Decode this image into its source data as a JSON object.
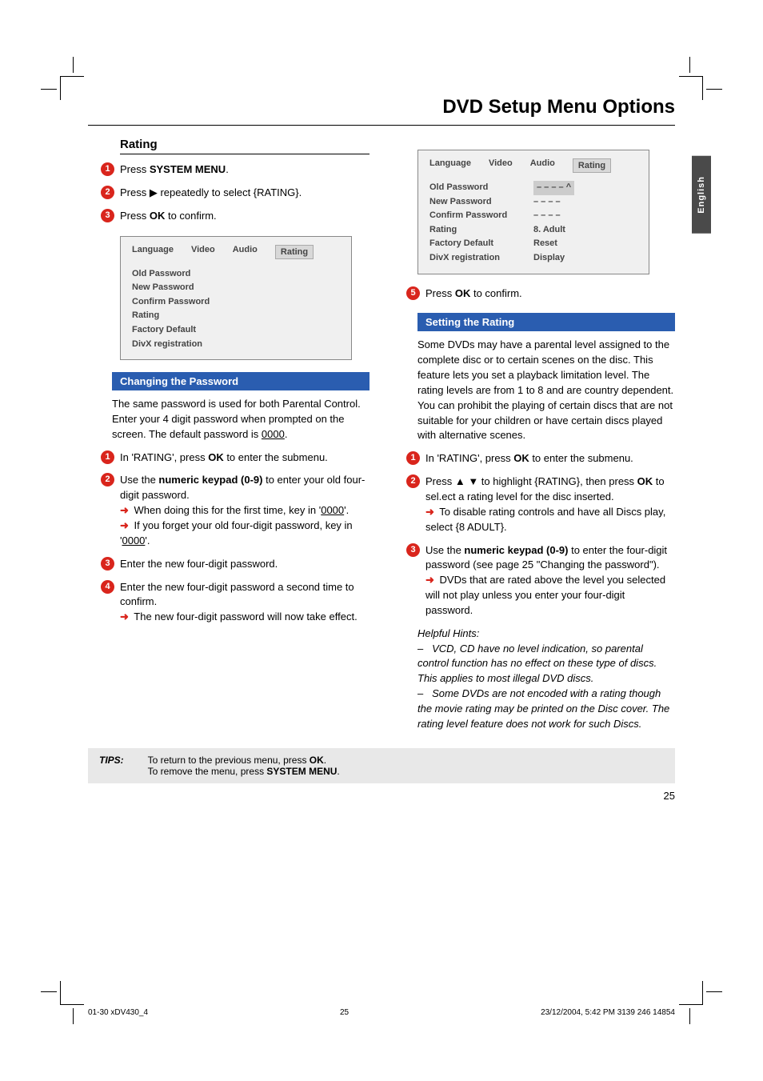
{
  "pageTitle": "DVD Setup Menu Options",
  "sideTab": "English",
  "rating": {
    "heading": "Rating",
    "steps": [
      {
        "n": "1",
        "html": "Press <strong>SYSTEM MENU</strong>."
      },
      {
        "n": "2",
        "html": "Press ▶ repeatedly to select {RATING}."
      },
      {
        "n": "3",
        "html": "Press <strong>OK</strong> to confirm."
      }
    ]
  },
  "menuBox1": {
    "tabs": [
      "Language",
      "Video",
      "Audio",
      "Rating"
    ],
    "activeTab": 3,
    "rows": [
      {
        "label": "Old Password",
        "value": ""
      },
      {
        "label": "New Password",
        "value": ""
      },
      {
        "label": "Confirm Password",
        "value": ""
      },
      {
        "label": "Rating",
        "value": ""
      },
      {
        "label": "Factory Default",
        "value": ""
      },
      {
        "label": "DivX registration",
        "value": ""
      }
    ]
  },
  "menuBox2": {
    "tabs": [
      "Language",
      "Video",
      "Audio",
      "Rating"
    ],
    "activeTab": 3,
    "rows": [
      {
        "label": "Old Password",
        "value": "– – – – ^",
        "highlight": true
      },
      {
        "label": "New Password",
        "value": "– – – –"
      },
      {
        "label": "Confirm Password",
        "value": "– – – –"
      },
      {
        "label": "Rating",
        "value": "8. Adult"
      },
      {
        "label": "Factory Default",
        "value": "Reset"
      },
      {
        "label": "DivX registration",
        "value": "Display"
      }
    ]
  },
  "changingPassword": {
    "bar": "Changing the Password",
    "intro": "The same password is used for both Parental Control. Enter your 4 digit password when prompted on the screen. The default password is <u>0000</u>.",
    "steps": [
      {
        "n": "1",
        "html": "In 'RATING', press <strong>OK</strong> to enter the submenu."
      },
      {
        "n": "2",
        "html": "Use the <strong>numeric keypad (0-9)</strong> to enter your old four-digit password.<br><span class='arrow'>➜</span> When doing this for the first time, key in '<u>0000</u>'.<br><span class='arrow'>➜</span> If you forget your old four-digit password, key in '<u>0000</u>'."
      },
      {
        "n": "3",
        "html": "Enter the new four-digit password."
      },
      {
        "n": "4",
        "html": "Enter the new four-digit password a second time to confirm.<br><span class='arrow'>➜</span> The new four-digit password will now take effect."
      }
    ]
  },
  "rightStep5": {
    "n": "5",
    "html": "Press <strong>OK</strong> to confirm."
  },
  "settingRating": {
    "bar": "Setting the Rating",
    "intro": "Some DVDs may have a parental level assigned to the complete disc or to certain scenes on the disc.  This feature lets you set a playback limitation level. The rating levels are from 1 to 8 and are country dependent.  You can prohibit the playing of certain discs that are not suitable for your children or have certain discs played with alternative scenes.",
    "steps": [
      {
        "n": "1",
        "html": "In 'RATING', press <strong>OK</strong> to enter the submenu."
      },
      {
        "n": "2",
        "html": "Press ▲ ▼ to highlight {RATING}, then press <strong>OK</strong> to sel.ect a rating level for the disc inserted.<br><span class='arrow'>➜</span> To disable rating controls and have all Discs play, select {8 ADULT}."
      },
      {
        "n": "3",
        "html": "Use the <strong>numeric keypad (0-9)</strong> to enter the four-digit password (see page 25 \"Changing the password\").<br><span class='arrow'>➜</span> DVDs that are rated above the level you selected will not play unless you enter your four-digit password."
      }
    ],
    "hints": "<em>Helpful Hints:</em><br>–&nbsp;&nbsp;&nbsp;<em>VCD, CD have no level indication, so parental control function has no effect on these type of discs. This applies to most illegal DVD discs.</em><br>–&nbsp;&nbsp;&nbsp;<em>Some DVDs are not encoded with a rating though the movie rating may be printed on the Disc cover.  The rating level feature does not work for such Discs.</em>"
  },
  "tips": {
    "label": "TIPS:",
    "text": "To return to the previous menu, press <strong>OK</strong>.<br>To remove the menu, press <strong>SYSTEM MENU</strong>."
  },
  "pageNum": "25",
  "footer": {
    "left": "01-30 xDV430_4",
    "mid": "25",
    "right": "23/12/2004, 5:42 PM  3139 246 14854"
  },
  "colors": {
    "red": "#d9251c",
    "blue": "#2a5db0",
    "greyBox": "#e8e8e8",
    "menuBg": "#f0f0f0",
    "tabDark": "#4a4a4a"
  }
}
